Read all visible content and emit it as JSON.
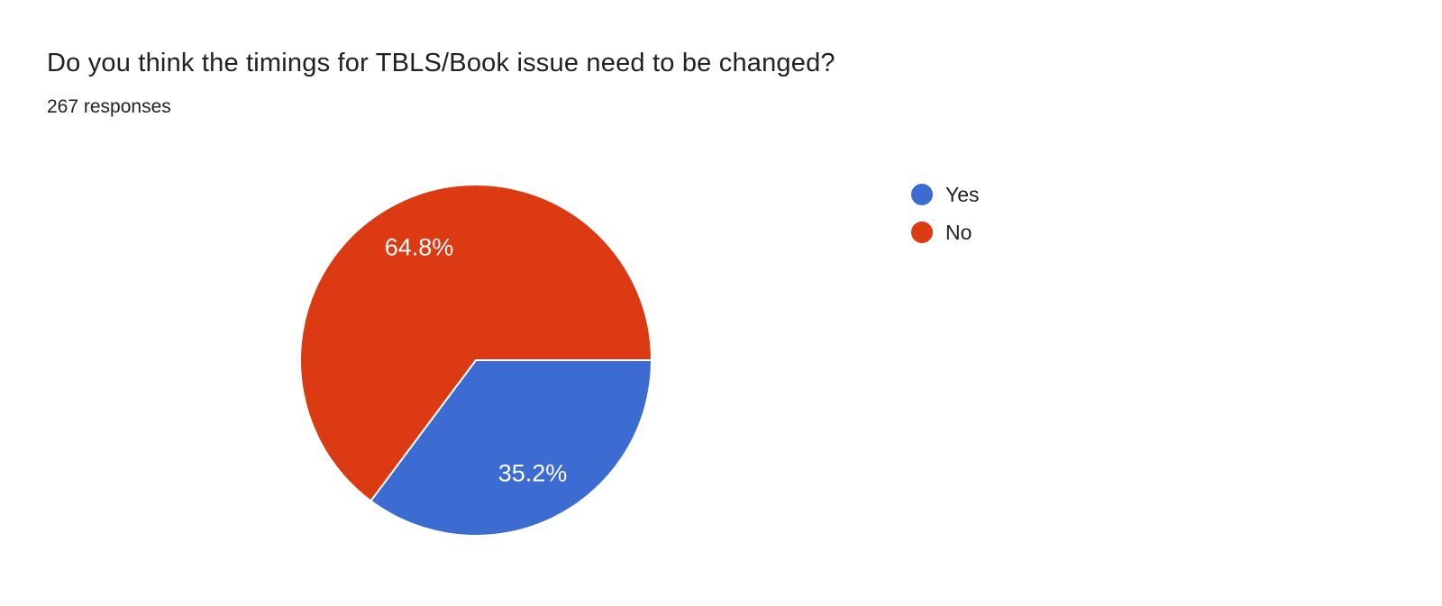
{
  "header": {
    "title": "Do you think the timings for TBLS/Book issue need to be changed?",
    "responses": "267 responses"
  },
  "chart_data": {
    "type": "pie",
    "title": "Do you think the timings for TBLS/Book issue need to be changed?",
    "subtitle": "267 responses",
    "total_responses": 267,
    "categories": [
      "Yes",
      "No"
    ],
    "values": [
      35.2,
      64.8
    ],
    "slices": [
      {
        "label": "Yes",
        "percent": 35.2,
        "display": "35.2%",
        "color": "#3c6bd2"
      },
      {
        "label": "No",
        "percent": 64.8,
        "display": "64.8%",
        "color": "#db3a12"
      }
    ],
    "start_angle_deg": 0,
    "direction": "clockwise",
    "legend_position": "right",
    "slice_label_color": "#ffffff",
    "slice_separator_color": "#ffffff"
  }
}
